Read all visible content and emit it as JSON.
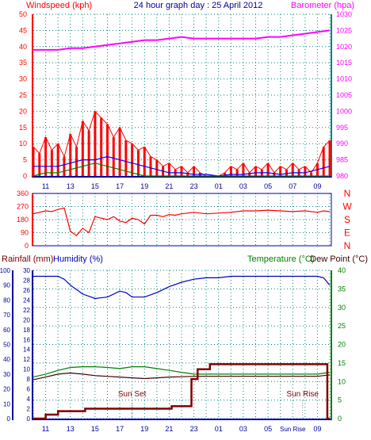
{
  "header": {
    "left_title": "Windspeed (kph)",
    "center_title": "24 hour graph day : 25 April 2012",
    "right_title": "Barometer (hpa)"
  },
  "colors": {
    "windspeed": "#ff0000",
    "barometer": "#ff00ff",
    "wind_avg": "#0000ff",
    "wind_green": "#008000",
    "grid": "#008080",
    "axis_left_top": "#ff0000",
    "axis_right_top": "#ff00ff",
    "rain": "#7f0000",
    "humidity": "#0000c0",
    "temperature": "#008000",
    "dewpoint": "#400000",
    "direction_axis": "#ff0000",
    "lower_left_axis": "#0000a0",
    "lower_right_axis": "#008000",
    "xaxis": "#0000a0"
  },
  "chart_data": [
    {
      "type": "line",
      "x_ticks": [
        "11",
        "13",
        "15",
        "17",
        "19",
        "21",
        "23",
        "01",
        "03",
        "05",
        "07",
        "09"
      ],
      "ylabel": "Windspeed (kph)",
      "ylabel_right": "Barometer (hpa)",
      "ylim": [
        0,
        50
      ],
      "ylim_right": [
        980,
        1030
      ],
      "y_ticks": [
        0,
        5,
        10,
        15,
        20,
        25,
        30,
        35,
        40,
        45,
        50
      ],
      "y_ticks_right": [
        980,
        985,
        990,
        995,
        1000,
        1005,
        1010,
        1015,
        1020,
        1025,
        1030
      ],
      "series": [
        {
          "name": "Barometer",
          "axis": "right",
          "x": [
            10,
            11,
            12,
            13,
            14,
            15,
            16,
            17,
            18,
            19,
            20,
            21,
            22,
            23,
            24,
            25,
            26,
            27,
            28,
            29,
            30,
            31,
            32,
            33,
            34
          ],
          "values": [
            1019,
            1019,
            1019,
            1019.5,
            1019.5,
            1020,
            1020.5,
            1021,
            1021.5,
            1022,
            1022,
            1022.5,
            1023,
            1022.5,
            1022.5,
            1022.5,
            1022.5,
            1022.5,
            1022.5,
            1023,
            1023,
            1023.5,
            1024,
            1024.5,
            1025
          ]
        },
        {
          "name": "Windspeed",
          "axis": "left",
          "x": [
            10,
            10.5,
            11,
            11.5,
            12,
            12.5,
            13,
            13.5,
            14,
            14.5,
            15,
            15.5,
            16,
            16.5,
            17,
            17.5,
            18,
            18.5,
            19,
            19.5,
            20,
            20.5,
            21,
            21.5,
            22,
            22.5,
            23,
            23.5,
            24,
            24.5,
            25,
            25.5,
            26,
            26.5,
            27,
            27.5,
            28,
            28.5,
            29,
            29.5,
            30,
            30.5,
            31,
            31.5,
            32,
            32.5,
            33,
            33.5,
            34
          ],
          "values": [
            9,
            7,
            12,
            8,
            10,
            6,
            13,
            9,
            17,
            14,
            20,
            18,
            16,
            12,
            15,
            11,
            10,
            8,
            9,
            6,
            5,
            3,
            4,
            2,
            3,
            1,
            3,
            1,
            0,
            0,
            0,
            1,
            3,
            2,
            4,
            1,
            3,
            2,
            4,
            1,
            3,
            2,
            4,
            2,
            3,
            1,
            4,
            9,
            11
          ]
        },
        {
          "name": "Average",
          "axis": "left",
          "x": [
            10,
            11,
            12,
            13,
            14,
            15,
            16,
            17,
            18,
            19,
            20,
            21,
            22,
            23,
            24,
            25,
            26,
            27,
            28,
            29,
            30,
            31,
            32,
            33,
            34
          ],
          "values": [
            3,
            3,
            3,
            4,
            5,
            5,
            6,
            5,
            4,
            3,
            2,
            1,
            1,
            0.5,
            0.5,
            0,
            0.5,
            0.5,
            1,
            1,
            0.5,
            1,
            1,
            2,
            3
          ]
        },
        {
          "name": "Gust",
          "axis": "left",
          "x": [
            10,
            11,
            12,
            13,
            14,
            15,
            16,
            17,
            18,
            19,
            20,
            21,
            22,
            23,
            24,
            25,
            26,
            27,
            28,
            29,
            30,
            31,
            32,
            33,
            34
          ],
          "values": [
            0,
            1,
            1,
            2,
            3,
            4,
            3,
            2,
            1,
            0,
            0,
            0,
            0,
            0,
            0,
            0,
            0,
            0,
            0,
            0,
            0,
            0,
            0,
            0,
            0
          ]
        }
      ]
    },
    {
      "type": "line",
      "x_ticks": [
        "11",
        "13",
        "15",
        "17",
        "19",
        "21",
        "23",
        "01",
        "03",
        "05",
        "07",
        "09"
      ],
      "ylim": [
        0,
        360
      ],
      "y_ticks": [
        0,
        90,
        180,
        270,
        360
      ],
      "right_labels": [
        "N",
        "W",
        "S",
        "E",
        "N"
      ],
      "series": [
        {
          "name": "Direction",
          "x": [
            10,
            10.5,
            11,
            11.5,
            12,
            12.5,
            13,
            13.5,
            14,
            14.5,
            15,
            15.5,
            16,
            16.5,
            17,
            17.5,
            18,
            18.5,
            19,
            19.5,
            20,
            20.5,
            21,
            21.5,
            22,
            23,
            24,
            25,
            26,
            27,
            28,
            29,
            30,
            31,
            32,
            33,
            33.5,
            34
          ],
          "values": [
            220,
            230,
            240,
            235,
            250,
            260,
            100,
            70,
            120,
            90,
            200,
            190,
            180,
            200,
            170,
            160,
            190,
            180,
            150,
            210,
            210,
            200,
            215,
            210,
            220,
            230,
            220,
            225,
            230,
            240,
            240,
            245,
            240,
            235,
            240,
            230,
            240,
            235
          ]
        }
      ]
    },
    {
      "type": "line",
      "x_ticks": [
        "11",
        "13",
        "15",
        "17",
        "19",
        "21",
        "23",
        "01",
        "03",
        "05",
        "Sun Rise",
        "09"
      ],
      "annotations": [
        "Sun Set",
        "Sun Rise"
      ],
      "ylabel": "Rainfall (mm)",
      "ylabel2": "Humidity (%)",
      "ylabel_right": "Temperature (°C)",
      "ylabel_right2": "Dew Point (°C)",
      "ylim_rain": [
        0,
        30
      ],
      "ylim_humidity": [
        0,
        100
      ],
      "ylim_right": [
        0,
        40
      ],
      "y_ticks_humidity": [
        0,
        10,
        20,
        30,
        40,
        50,
        60,
        70,
        80,
        90,
        100
      ],
      "y_ticks_rain": [
        0,
        2,
        4,
        6,
        8,
        10,
        12,
        14,
        16,
        18,
        20,
        22,
        24,
        26,
        28,
        30
      ],
      "y_ticks_right": [
        0,
        5,
        10,
        15,
        20,
        25,
        30,
        35,
        40
      ],
      "series": [
        {
          "name": "Humidity",
          "axis": "humidity",
          "x": [
            10,
            11,
            12,
            12.5,
            13,
            14,
            15,
            16,
            17,
            17.5,
            18,
            19,
            20,
            21,
            22,
            23,
            24,
            25,
            26,
            27,
            28,
            29,
            30,
            31,
            32,
            33,
            33.5,
            34
          ],
          "values": [
            96,
            96,
            96,
            94,
            90,
            84,
            81,
            82,
            86,
            85,
            82,
            82,
            85,
            89,
            92,
            94,
            95,
            95,
            96,
            96,
            96,
            96,
            96,
            96,
            96,
            96,
            95,
            90
          ]
        },
        {
          "name": "Temperature",
          "axis": "right",
          "x": [
            10,
            11,
            12,
            13,
            14,
            15,
            16,
            17,
            18,
            19,
            20,
            21,
            22,
            23,
            24,
            25,
            26,
            27,
            28,
            29,
            30,
            31,
            32,
            33,
            34
          ],
          "values": [
            11.2,
            12,
            13,
            13.8,
            14,
            14,
            13.8,
            13.5,
            14,
            14,
            13.5,
            13,
            12.5,
            12,
            12,
            12,
            12,
            12,
            12,
            12,
            12,
            12,
            12,
            12,
            12.5
          ]
        },
        {
          "name": "Dew Point",
          "axis": "right",
          "x": [
            10,
            11,
            12,
            13,
            14,
            15,
            16,
            17,
            18,
            19,
            20,
            21,
            22,
            23,
            24,
            25,
            26,
            27,
            28,
            29,
            30,
            31,
            32,
            33,
            34
          ],
          "values": [
            10.5,
            11.2,
            12,
            12.3,
            12,
            11.6,
            11.4,
            11.2,
            11,
            10.8,
            11,
            11.2,
            11.3,
            11.4,
            11.4,
            11.4,
            11.4,
            11.4,
            11.4,
            11.4,
            11.4,
            11.4,
            11.4,
            11.4,
            11.8
          ]
        },
        {
          "name": "Rainfall",
          "axis": "rain",
          "x": [
            10,
            10.4,
            11,
            11.4,
            12,
            13,
            14,
            14.2,
            15,
            16,
            17,
            18,
            19,
            20,
            21,
            21.2,
            22,
            22.8,
            23,
            23.3,
            24,
            24.3,
            25,
            26,
            27,
            28,
            29,
            30,
            31,
            32,
            33,
            33.6,
            33.8,
            34
          ],
          "values": [
            0,
            0,
            0.8,
            0.8,
            1.5,
            1.5,
            1.5,
            2,
            2,
            2,
            2,
            2,
            2,
            2,
            2,
            2.5,
            2.5,
            8,
            8,
            10,
            10,
            11,
            11,
            11,
            11,
            11,
            11,
            11,
            11,
            11,
            11,
            11,
            0,
            0
          ]
        }
      ]
    }
  ]
}
